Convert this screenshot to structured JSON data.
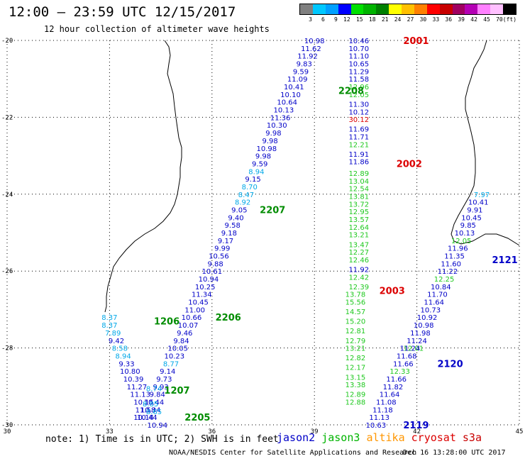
{
  "header": {
    "title": "12:00 — 23:59 UTC 12/15/2017",
    "subtitle": "12 hour collection of altimeter wave heights"
  },
  "scale": {
    "labels": [
      "3",
      "6",
      "9",
      "12",
      "15",
      "18",
      "21",
      "24",
      "27",
      "30",
      "33",
      "36",
      "39",
      "42",
      "45",
      "70",
      "(ft)"
    ],
    "colors": [
      "#808080",
      "#00c8ff",
      "#00a0ff",
      "#0000ff",
      "#00e000",
      "#00b400",
      "#008000",
      "#ffff00",
      "#ffc000",
      "#ff8000",
      "#ff0000",
      "#c80000",
      "#a00060",
      "#b400b4",
      "#ff80ff",
      "#ffc0ff",
      "#000000"
    ]
  },
  "footer": {
    "note": "note: 1) Time is in UTC; 2) SWH is in feet",
    "credit": "NOAA/NESDIS Center for Satellite Applications and Research",
    "stamp": "Dec 16 13:28:00 UTC 2017"
  },
  "legend": [
    {
      "name": "jason2",
      "color": "#0000c8"
    },
    {
      "name": "jason3",
      "color": "#00b400"
    },
    {
      "name": "altika",
      "color": "#ff9600"
    },
    {
      "name": "cryosat",
      "color": "#dc0000"
    },
    {
      "name": "s3a",
      "color": "#c80000"
    }
  ],
  "axes": {
    "lon_ticks": [
      30,
      33,
      36,
      39,
      42,
      45
    ],
    "lat_ticks": [
      -20,
      -22,
      -24,
      -26,
      -28,
      -30
    ],
    "lon_range": [
      30,
      45
    ],
    "lat_range": [
      -30,
      -20
    ]
  },
  "tracks": [
    {
      "label": "2001",
      "color": "#dc0000",
      "label_pos": [
        41.6,
        -20.0
      ],
      "points": [
        [
          "10.46",
          40.3,
          -20.0
        ],
        [
          "10.70",
          40.3,
          -20.2
        ],
        [
          "11.10",
          40.3,
          -20.4
        ],
        [
          "10.65",
          40.3,
          -20.6
        ],
        [
          "11.29",
          40.3,
          -20.8
        ],
        [
          "11.58",
          40.3,
          -21.0
        ],
        [
          "12.96",
          40.3,
          -21.2
        ],
        [
          "12.05",
          40.3,
          -21.4
        ],
        [
          "11.30",
          40.3,
          -21.65
        ],
        [
          "10.12",
          40.3,
          -21.85
        ],
        [
          "30.12",
          40.3,
          -22.05
        ],
        [
          "11.69",
          40.3,
          -22.3
        ],
        [
          "11.71",
          40.3,
          -22.5
        ],
        [
          "12.21",
          40.3,
          -22.7
        ]
      ]
    },
    {
      "label": "2002",
      "color": "#dc0000",
      "label_pos": [
        41.4,
        -23.2
      ],
      "points": [
        [
          "11.91",
          40.3,
          -22.95
        ],
        [
          "11.86",
          40.3,
          -23.15
        ],
        [
          "12.89",
          40.3,
          -23.45
        ],
        [
          "13.04",
          40.3,
          -23.65
        ],
        [
          "12.54",
          40.3,
          -23.85
        ],
        [
          "13.81",
          40.3,
          -24.05
        ],
        [
          "13.72",
          40.3,
          -24.25
        ],
        [
          "12.95",
          40.3,
          -24.45
        ],
        [
          "13.57",
          40.3,
          -24.65
        ],
        [
          "12.64",
          40.3,
          -24.85
        ],
        [
          "13.21",
          40.3,
          -25.05
        ],
        [
          "13.47",
          40.3,
          -25.3
        ],
        [
          "12.27",
          40.3,
          -25.5
        ],
        [
          "12.46",
          40.3,
          -25.7
        ],
        [
          "11.92",
          40.3,
          -25.95
        ],
        [
          "12.42",
          40.3,
          -26.15
        ],
        [
          "12.39",
          40.3,
          -26.4
        ]
      ]
    },
    {
      "label": "2003",
      "color": "#dc0000",
      "label_pos": [
        40.9,
        -26.5
      ],
      "points": [
        [
          "13.78",
          40.2,
          -26.6
        ],
        [
          "15.56",
          40.2,
          -26.8
        ],
        [
          "14.57",
          40.2,
          -27.05
        ],
        [
          "15.20",
          40.2,
          -27.3
        ],
        [
          "12.81",
          40.2,
          -27.55
        ],
        [
          "12.79",
          40.2,
          -27.8
        ],
        [
          "13.21",
          40.2,
          -28.0
        ],
        [
          "12.82",
          40.2,
          -28.25
        ],
        [
          "12.17",
          40.2,
          -28.5
        ],
        [
          "13.15",
          40.2,
          -28.75
        ],
        [
          "13.38",
          40.2,
          -28.95
        ],
        [
          "12.89",
          40.2,
          -29.2
        ],
        [
          "12.88",
          40.2,
          -29.4
        ]
      ]
    },
    {
      "label": "2208",
      "color": "#008c00",
      "label_pos": [
        39.7,
        -21.3
      ],
      "points": [
        [
          "10.98",
          39.0,
          -20.0
        ],
        [
          "11.62",
          38.9,
          -20.2
        ],
        [
          "11.92",
          38.8,
          -20.4
        ],
        [
          "9.83",
          38.7,
          -20.6
        ],
        [
          "9.59",
          38.6,
          -20.8
        ],
        [
          "11.09",
          38.5,
          -21.0
        ],
        [
          "10.41",
          38.4,
          -21.2
        ],
        [
          "10.10",
          38.3,
          -21.4
        ],
        [
          "10.64",
          38.2,
          -21.6
        ],
        [
          "10.13",
          38.1,
          -21.8
        ],
        [
          "11.36",
          38.0,
          -22.0
        ],
        [
          "10.30",
          37.9,
          -22.2
        ],
        [
          "9.98",
          37.8,
          -22.4
        ],
        [
          "9.98",
          37.7,
          -22.6
        ],
        [
          "10.98",
          37.6,
          -22.8
        ],
        [
          "9.98",
          37.5,
          -23.0
        ],
        [
          "9.59",
          37.4,
          -23.2
        ],
        [
          "8.94",
          37.3,
          -23.4
        ],
        [
          "9.15",
          37.2,
          -23.6
        ],
        [
          "8.70",
          37.1,
          -23.8
        ],
        [
          "8.47",
          37.0,
          -24.0
        ],
        [
          "8.92",
          36.9,
          -24.2
        ]
      ]
    },
    {
      "label": "2207",
      "color": "#008c00",
      "label_pos": [
        37.4,
        -24.4
      ],
      "points": [
        [
          "9.05",
          36.8,
          -24.4
        ],
        [
          "9.40",
          36.7,
          -24.6
        ],
        [
          "9.58",
          36.6,
          -24.8
        ],
        [
          "9.18",
          36.5,
          -25.0
        ],
        [
          "9.17",
          36.4,
          -25.2
        ],
        [
          "9.99",
          36.3,
          -25.4
        ],
        [
          "10.56",
          36.2,
          -25.6
        ],
        [
          "9.88",
          36.1,
          -25.8
        ],
        [
          "10.61",
          36.0,
          -26.0
        ],
        [
          "10.94",
          35.9,
          -26.2
        ],
        [
          "10.25",
          35.8,
          -26.4
        ],
        [
          "11.34",
          35.7,
          -26.6
        ],
        [
          "10.45",
          35.6,
          -26.8
        ],
        [
          "11.00",
          35.5,
          -27.0
        ],
        [
          "10.66",
          35.4,
          -27.2
        ]
      ]
    },
    {
      "label": "2206",
      "color": "#008c00",
      "label_pos": [
        36.1,
        -27.2
      ],
      "points": [
        [
          "10.07",
          35.3,
          -27.4
        ],
        [
          "9.46",
          35.2,
          -27.6
        ],
        [
          "9.84",
          35.1,
          -27.8
        ],
        [
          "10.05",
          35.0,
          -28.0
        ],
        [
          "10.23",
          34.9,
          -28.2
        ],
        [
          "8.77",
          34.8,
          -28.4
        ],
        [
          "9.14",
          34.7,
          -28.6
        ],
        [
          "9.73",
          34.6,
          -28.8
        ],
        [
          "9.93",
          34.5,
          -29.0
        ],
        [
          "9.84",
          34.4,
          -29.2
        ],
        [
          "10.44",
          34.3,
          -29.4
        ],
        [
          "10.34",
          34.2,
          -29.6
        ]
      ]
    },
    {
      "label": "1206",
      "color": "#008c00",
      "label_pos": [
        34.3,
        -27.3
      ],
      "points": [
        [
          "8.37",
          33.0,
          -27.2
        ],
        [
          "8.37",
          33.0,
          -27.4
        ],
        [
          "7.89",
          33.1,
          -27.6
        ],
        [
          "9.42",
          33.2,
          -27.8
        ],
        [
          "8.58",
          33.3,
          -28.0
        ],
        [
          "8.94",
          33.4,
          -28.2
        ],
        [
          "9.33",
          33.5,
          -28.4
        ],
        [
          "10.80",
          33.6,
          -28.6
        ],
        [
          "10.39",
          33.7,
          -28.8
        ],
        [
          "11.27",
          33.8,
          -29.0
        ],
        [
          "11.13",
          33.9,
          -29.2
        ],
        [
          "10.15",
          34.0,
          -29.4
        ],
        [
          "11.58",
          34.05,
          -29.6
        ],
        [
          "10.44",
          34.1,
          -29.8
        ]
      ]
    },
    {
      "label": "1207",
      "color": "#008c00",
      "label_pos": [
        34.6,
        -29.1
      ],
      "points": [
        [
          "8.74",
          34.3,
          -29.05
        ],
        [
          "8.85",
          34.2,
          -29.45
        ],
        [
          "8.65",
          34.3,
          -29.65
        ]
      ]
    },
    {
      "label": "2205",
      "color": "#008c00",
      "label_pos": [
        35.2,
        -29.8
      ],
      "points": [
        [
          "10.94",
          34.4,
          -30.0
        ],
        [
          "10.14",
          34.0,
          -29.8
        ]
      ]
    },
    {
      "label": "2121",
      "color": "#0000c8",
      "label_pos": [
        44.2,
        -25.7
      ],
      "points": [
        [
          "7.97",
          43.9,
          -24.0
        ],
        [
          "10.41",
          43.8,
          -24.2
        ],
        [
          "9.91",
          43.7,
          -24.4
        ],
        [
          "10.45",
          43.6,
          -24.6
        ],
        [
          "9.85",
          43.5,
          -24.8
        ],
        [
          "10.13",
          43.4,
          -25.0
        ],
        [
          "12.05",
          43.3,
          -25.2
        ],
        [
          "11.96",
          43.2,
          -25.4
        ],
        [
          "11.35",
          43.1,
          -25.6
        ],
        [
          "11.60",
          43.0,
          -25.8
        ],
        [
          "11.22",
          42.9,
          -26.0
        ],
        [
          "12.25",
          42.8,
          -26.2
        ],
        [
          "10.84",
          42.7,
          -26.4
        ],
        [
          "11.70",
          42.6,
          -26.6
        ],
        [
          "11.64",
          42.5,
          -26.8
        ],
        [
          "10.73",
          42.4,
          -27.0
        ],
        [
          "10.92",
          42.3,
          -27.2
        ],
        [
          "10.98",
          42.2,
          -27.4
        ],
        [
          "11.98",
          42.1,
          -27.6
        ],
        [
          "11.24",
          42.0,
          -27.8
        ],
        [
          "12.01",
          41.9,
          -28.0
        ]
      ]
    },
    {
      "label": "2120",
      "color": "#0000c8",
      "label_pos": [
        42.6,
        -28.4
      ],
      "points": [
        [
          "11.24",
          41.8,
          -28.0
        ],
        [
          "11.68",
          41.7,
          -28.2
        ],
        [
          "11.66",
          41.6,
          -28.4
        ],
        [
          "12.33",
          41.5,
          -28.6
        ],
        [
          "11.66",
          41.4,
          -28.8
        ],
        [
          "11.82",
          41.3,
          -29.0
        ],
        [
          "11.64",
          41.2,
          -29.2
        ],
        [
          "11.08",
          41.1,
          -29.4
        ],
        [
          "11.18",
          41.0,
          -29.6
        ],
        [
          "11.13",
          40.9,
          -29.8
        ]
      ]
    },
    {
      "label": "2119",
      "color": "#0000c8",
      "label_pos": [
        41.6,
        -30.0
      ],
      "points": [
        [
          "10.63",
          40.8,
          -30.0
        ]
      ]
    }
  ]
}
